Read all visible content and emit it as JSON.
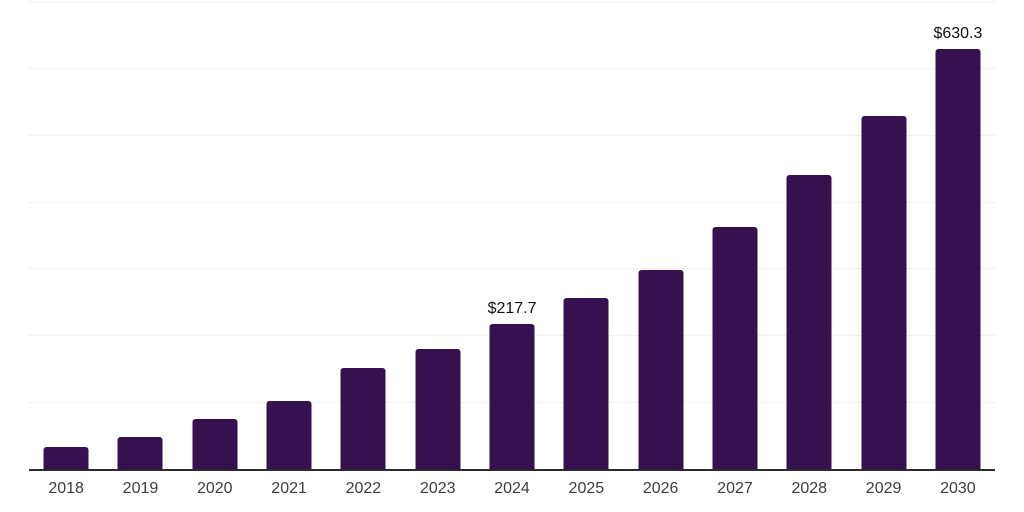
{
  "chart_data": {
    "type": "bar",
    "title": "",
    "xlabel": "",
    "ylabel": "",
    "categories": [
      "2018",
      "2019",
      "2020",
      "2021",
      "2022",
      "2023",
      "2024",
      "2025",
      "2026",
      "2027",
      "2028",
      "2029",
      "2030"
    ],
    "values": [
      34.7,
      49.6,
      75.6,
      103.3,
      152.0,
      181.4,
      217.7,
      256.8,
      299.2,
      364.2,
      440.7,
      530.2,
      630.3
    ],
    "data_labels": {
      "2024": "$217.7",
      "2030": "$630.3"
    },
    "ylim": [
      0,
      700
    ],
    "gridline_step": 100,
    "grid": true,
    "legend": false,
    "colors": {
      "bar": "#351150",
      "gridline": "#f0f0f0",
      "axis_line": "#2b2b2b",
      "data_label": "#111111",
      "tick_label": "#3d3d3d",
      "background": "#ffffff"
    }
  }
}
